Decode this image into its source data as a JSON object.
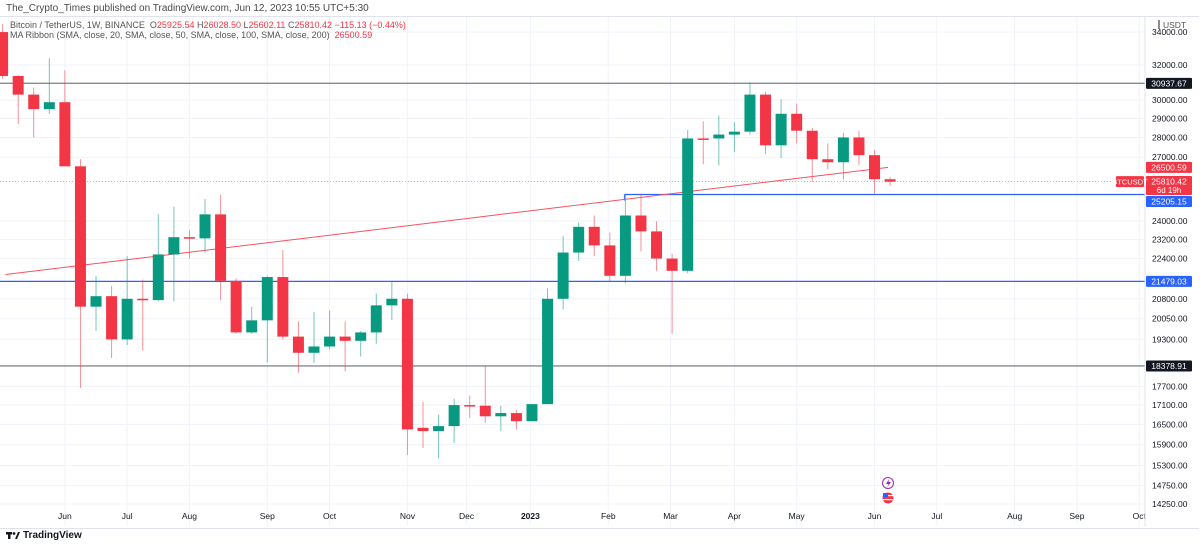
{
  "header": {
    "published": "The_Crypto_Times published on TradingView.com, Jun 12, 2023 10:55 UTC+5:30"
  },
  "legend": {
    "symbol": "Bitcoin / TetherUS, 1W, BINANCE",
    "o_label": "O",
    "o_value": "25925.54",
    "h_label": "H",
    "h_value": "26028.50",
    "l_label": "L",
    "l_value": "25602.11",
    "c_label": "C",
    "c_value": "25810.42",
    "change": "−115.13 (−0.44%)",
    "indicator": "MA Ribbon (SMA, close, 20, SMA, close, 50, SMA, close, 100, SMA, close, 200)",
    "indicator_value": "26500.59"
  },
  "footer": {
    "logo_text": "TradingView"
  },
  "colors": {
    "up": "#089981",
    "down": "#f23645",
    "blue": "#2962ff",
    "dark": "#131722",
    "ma": "#f7525f",
    "grid": "#f0f3fa"
  },
  "chart_data": {
    "type": "candlestick",
    "symbol": "BTCUSDT",
    "timeframe": "1W",
    "y_scale": "log",
    "ylim": [
      14000,
      34800
    ],
    "y_axis_unit": "USDT",
    "y_ticks": [
      "34000.00",
      "32000.00",
      "30000.00",
      "29000.00",
      "28000.00",
      "27000.00",
      "24000.00",
      "23200.00",
      "22400.00",
      "20800.00",
      "20050.00",
      "19300.00",
      "17700.00",
      "17100.00",
      "16500.00",
      "15900.00",
      "15300.00",
      "14750.00",
      "14250.00"
    ],
    "x_ticks": [
      "Jun",
      "Jul",
      "Aug",
      "Sep",
      "Oct",
      "Nov",
      "Dec",
      "2023",
      "Feb",
      "Mar",
      "Apr",
      "May",
      "Jun",
      "Jul",
      "Aug",
      "Sep",
      "Oct"
    ],
    "grid": true,
    "ohlc": [
      [
        34000,
        34500,
        31200,
        31360
      ],
      [
        31360,
        31400,
        28700,
        30300
      ],
      [
        30300,
        30700,
        28000,
        29500
      ],
      [
        29500,
        32400,
        29250,
        29880
      ],
      [
        29880,
        31700,
        26550,
        26550
      ],
      [
        26550,
        26900,
        17650,
        20500
      ],
      [
        20500,
        21700,
        19600,
        20900
      ],
      [
        20900,
        21300,
        18650,
        19300
      ],
      [
        19300,
        22500,
        19100,
        20800
      ],
      [
        20800,
        21550,
        18900,
        20750
      ],
      [
        20750,
        24300,
        20700,
        22570
      ],
      [
        22570,
        24650,
        20700,
        23300
      ],
      [
        23300,
        23600,
        22400,
        23250
      ],
      [
        23250,
        25000,
        22650,
        24300
      ],
      [
        24300,
        25200,
        20750,
        21500
      ],
      [
        21500,
        21600,
        19500,
        19550
      ],
      [
        19550,
        20500,
        19500,
        19990
      ],
      [
        19990,
        21700,
        18500,
        21650
      ],
      [
        21650,
        22750,
        19300,
        19400
      ],
      [
        19400,
        19950,
        18150,
        18830
      ],
      [
        18830,
        20300,
        18480,
        19050
      ],
      [
        19050,
        20350,
        18950,
        19400
      ],
      [
        19400,
        19950,
        18200,
        19250
      ],
      [
        19250,
        19600,
        18700,
        19550
      ],
      [
        19550,
        21000,
        19150,
        20550
      ],
      [
        20550,
        21500,
        20000,
        20800
      ],
      [
        20800,
        21000,
        15600,
        16350
      ],
      [
        16400,
        17200,
        15800,
        16300
      ],
      [
        16300,
        16800,
        15500,
        16450
      ],
      [
        16450,
        17300,
        15950,
        17100
      ],
      [
        17100,
        17400,
        16700,
        17080
      ],
      [
        17080,
        18400,
        16550,
        16750
      ],
      [
        16750,
        17080,
        16300,
        16850
      ],
      [
        16850,
        16950,
        16350,
        16600
      ],
      [
        16600,
        17130,
        16600,
        17130
      ],
      [
        17130,
        21200,
        17130,
        20800
      ],
      [
        20800,
        23350,
        20400,
        22650
      ],
      [
        22650,
        23950,
        22300,
        23750
      ],
      [
        23750,
        24250,
        22500,
        22950
      ],
      [
        22950,
        23500,
        21480,
        21700
      ],
      [
        21700,
        25250,
        21400,
        24250
      ],
      [
        24250,
        25250,
        22700,
        23550
      ],
      [
        23550,
        24000,
        21900,
        22400
      ],
      [
        22400,
        22600,
        19500,
        21900
      ],
      [
        21900,
        28400,
        21800,
        27950
      ],
      [
        27950,
        28850,
        26650,
        27900
      ],
      [
        27950,
        29150,
        26600,
        28150
      ],
      [
        28150,
        28800,
        27250,
        28300
      ],
      [
        28300,
        31000,
        28150,
        30300
      ],
      [
        30300,
        30450,
        27150,
        27600
      ],
      [
        27600,
        30050,
        26950,
        29250
      ],
      [
        29250,
        29800,
        27700,
        28350
      ],
      [
        28350,
        28500,
        25800,
        26900
      ],
      [
        26900,
        27700,
        26400,
        26750
      ],
      [
        26750,
        28250,
        25900,
        28000
      ],
      [
        28000,
        28350,
        26600,
        27100
      ],
      [
        27100,
        27350,
        25250,
        25925.54
      ],
      [
        25925.54,
        26028.5,
        25602.11,
        25810.42
      ]
    ],
    "ma_line": [
      21750,
      26500.59
    ],
    "horizontal_levels": [
      {
        "price": 30937.67,
        "label": "30937.67",
        "color": "#131722"
      },
      {
        "price": 25205.15,
        "label": "25205.15",
        "color": "#2962ff",
        "from_week": 40
      },
      {
        "price": 21479.03,
        "label": "21479.03",
        "color": "#2962ff"
      },
      {
        "price": 18378.91,
        "label": "18378.91",
        "color": "#131722"
      }
    ],
    "price_badges": {
      "ma": "26500.59",
      "last": "25810.42",
      "countdown": "6d 19h",
      "symbol_tag": "BTCUSDT"
    }
  }
}
